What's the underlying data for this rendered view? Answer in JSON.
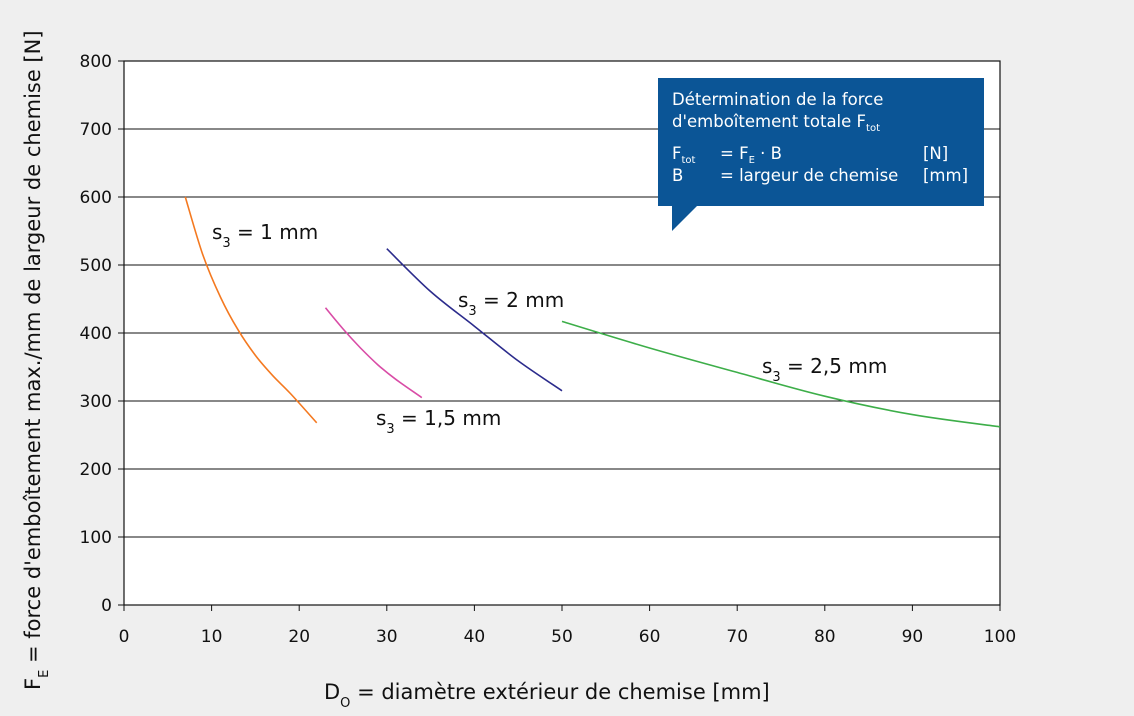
{
  "chart_data": {
    "type": "line",
    "xlabel": {
      "main": "D",
      "sub": "O",
      "rest": " = diamètre extérieur de chemise [mm]"
    },
    "ylabel": {
      "main": "F",
      "sub": "E",
      "rest": " = force d'emboîtement max./mm de largeur de chemise [N]"
    },
    "xlim": [
      0,
      100
    ],
    "ylim": [
      0,
      800
    ],
    "xticks": [
      "0",
      "10",
      "20",
      "30",
      "40",
      "50",
      "60",
      "70",
      "80",
      "90",
      "100"
    ],
    "yticks": [
      "0",
      "100",
      "200",
      "300",
      "400",
      "500",
      "600",
      "700",
      "800"
    ],
    "grid": "horizontal",
    "series": [
      {
        "name": "s3 = 1 mm",
        "label_main": "s",
        "label_sub": "3",
        "label_rest": " = 1 mm",
        "color": "#f47920",
        "x": [
          7,
          9,
          11,
          13,
          15,
          17,
          19,
          22
        ],
        "y": [
          600,
          515,
          453,
          405,
          367,
          337,
          311,
          268
        ]
      },
      {
        "name": "s3 = 1,5 mm",
        "label_main": "s",
        "label_sub": "3",
        "label_rest": " = 1,5 mm",
        "color": "#d94ca6",
        "x": [
          23,
          25,
          27,
          29,
          31,
          34
        ],
        "y": [
          437,
          406,
          378,
          353,
          332,
          305
        ]
      },
      {
        "name": "s3 = 2 mm",
        "label_main": "s",
        "label_sub": "3",
        "label_rest": " = 2 mm",
        "color": "#2b2b8c",
        "x": [
          30,
          35,
          40,
          45,
          50
        ],
        "y": [
          524,
          461,
          410,
          359,
          315
        ]
      },
      {
        "name": "s3 = 2,5 mm",
        "label_main": "s",
        "label_sub": "3",
        "label_rest": " = 2,5 mm",
        "color": "#3dae49",
        "x": [
          50,
          60,
          70,
          80,
          90,
          100
        ],
        "y": [
          417,
          378,
          342,
          307,
          280,
          262
        ]
      }
    ]
  },
  "infobox": {
    "title_line1": "Détermination de la force",
    "title_line2": "d'emboîtement totale F",
    "title_line2_sub": "tot",
    "row1_sym": "F",
    "row1_sym_sub": "tot",
    "row1_def": "= F",
    "row1_def_sub": "E",
    "row1_def_rest": " · B",
    "row1_unit": "[N]",
    "row2_sym": "B",
    "row2_def": "= largeur de chemise",
    "row2_unit": "[mm]",
    "color": "#0b5596"
  }
}
